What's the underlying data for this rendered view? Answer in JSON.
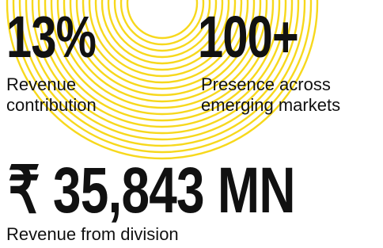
{
  "stats": [
    {
      "value": "13%",
      "label": "Revenue contribution"
    },
    {
      "value": "100+",
      "label": "Presence across emerging markets"
    }
  ],
  "highlight": {
    "value": "₹ 35,843 MN",
    "label": "Revenue from division"
  }
}
